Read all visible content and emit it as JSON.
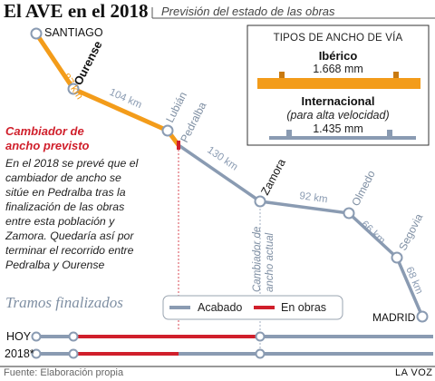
{
  "header": {
    "title": "El AVE en el 2018",
    "subtitle": "Previsión del estado de las obras"
  },
  "map": {
    "stations": [
      {
        "id": "santiago",
        "label": "SANTIAGO"
      },
      {
        "id": "ourense",
        "label": "Ourense"
      },
      {
        "id": "lubian",
        "label": "Lubián"
      },
      {
        "id": "pedralba",
        "label": "Pedralba"
      },
      {
        "id": "zamora",
        "label": "Zamora"
      },
      {
        "id": "olmedo",
        "label": "Olmedo"
      },
      {
        "id": "segovia",
        "label": "Segovia"
      },
      {
        "id": "madrid",
        "label": "MADRID"
      }
    ],
    "distances": [
      "87 km",
      "104 km",
      "130 km",
      "92 km",
      "66 km",
      "68 km"
    ],
    "cambiador_actual": [
      "Cambiador de",
      "ancho actual"
    ]
  },
  "legend_box": {
    "heading": "TIPOS DE ANCHO DE VÍA",
    "iberico": {
      "name": "Ibérico",
      "value": "1.668 mm",
      "color": "#f39c1a"
    },
    "internacional": {
      "name": "Internacional",
      "note": "(para alta velocidad)",
      "value": "1.435 mm",
      "color": "#8a9bb2"
    }
  },
  "cambiador": {
    "title": [
      "Cambiador de",
      "ancho previsto"
    ],
    "note": "En el 2018 se prevé que el cambiador de ancho se sitúe en Pedralba tras la finalización de las obras entre esta población y Zamora. Quedaría así por terminar el recorrido entre Pedralba y Ourense"
  },
  "tramos": {
    "title": "Tramos finalizados",
    "legend": {
      "acabado": "Acabado",
      "en_obras": "En obras"
    },
    "rows": [
      {
        "label": "HOY"
      },
      {
        "label": "2018*"
      }
    ]
  },
  "footer": {
    "source": "Fuente: Elaboración propia",
    "brand": "LA VOZ"
  },
  "colors": {
    "orange": "#f39c1a",
    "gray": "#8a9bb2",
    "red": "#d01f2b"
  }
}
